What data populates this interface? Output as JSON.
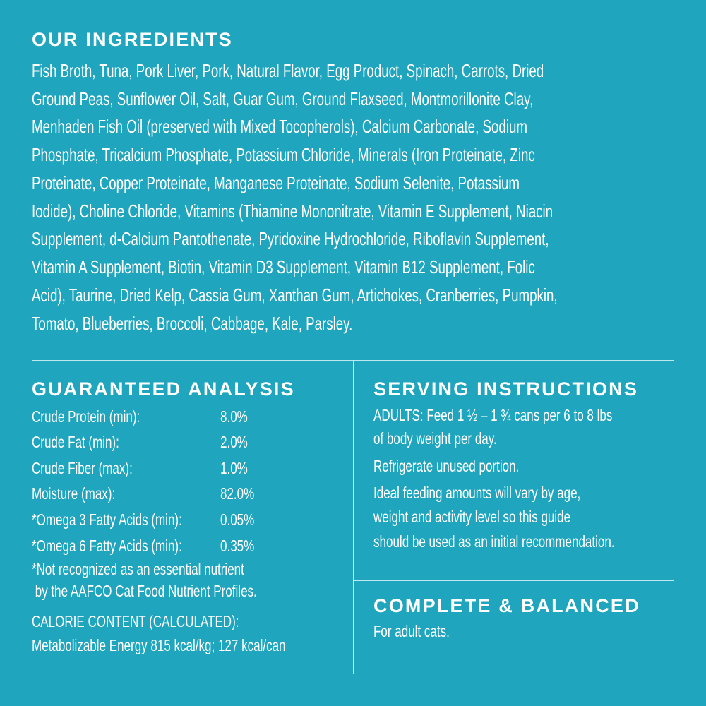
{
  "ingredients": {
    "title": "OUR INGREDIENTS",
    "lines": [
      "Fish Broth, Tuna, Pork Liver, Pork, Natural Flavor, Egg Product, Spinach, Carrots, Dried",
      "Ground Peas, Sunflower Oil, Salt, Guar Gum, Ground Flaxseed, Montmorillonite Clay,",
      "Menhaden Fish Oil (preserved with Mixed Tocopherols), Calcium Carbonate, Sodium",
      "Phosphate, Tricalcium Phosphate, Potassium Chloride, Minerals (Iron Proteinate, Zinc",
      "Proteinate, Copper Proteinate, Manganese Proteinate, Sodium Selenite, Potassium",
      "Iodide), Choline Chloride, Vitamins (Thiamine Mononitrate, Vitamin E Supplement, Niacin",
      "Supplement, d-Calcium Pantothenate, Pyridoxine Hydrochloride, Riboflavin Supplement,",
      "Vitamin A Supplement, Biotin, Vitamin D3 Supplement, Vitamin B12 Supplement, Folic",
      "Acid), Taurine, Dried Kelp, Cassia Gum, Xanthan Gum, Artichokes, Cranberries, Pumpkin,",
      "Tomato, Blueberries, Broccoli, Cabbage, Kale, Parsley."
    ]
  },
  "analysis": {
    "title": "GUARANTEED ANALYSIS",
    "rows": [
      {
        "label": "Crude Protein (min):",
        "value": "8.0%"
      },
      {
        "label": "Crude Fat (min):",
        "value": "2.0%"
      },
      {
        "label": "Crude Fiber (max):",
        "value": "1.0%"
      },
      {
        "label": "Moisture (max):",
        "value": "82.0%"
      },
      {
        "label": "*Omega 3 Fatty Acids (min):",
        "value": "0.05%"
      },
      {
        "label": "*Omega 6 Fatty Acids (min):",
        "value": "0.35%"
      }
    ],
    "footnote": [
      "*Not recognized as an essential nutrient",
      " by the AAFCO Cat Food Nutrient Profiles."
    ],
    "calorie": [
      "CALORIE CONTENT (CALCULATED):",
      "Metabolizable Energy 815 kcal/kg; 127 kcal/can"
    ]
  },
  "serving": {
    "title": "SERVING INSTRUCTIONS",
    "lines": [
      "ADULTS: Feed 1 ½ – 1 ¾ cans per 6 to 8 lbs",
      "of body weight per day.",
      "Refrigerate unused portion.",
      "Ideal feeding amounts will vary by age,",
      "weight and activity level so this guide",
      "should be used as an initial recommendation."
    ]
  },
  "complete": {
    "title": "COMPLETE & BALANCED",
    "text": "For adult cats."
  },
  "colors": {
    "background": "#1fa5bd",
    "text": "#ffffff"
  }
}
